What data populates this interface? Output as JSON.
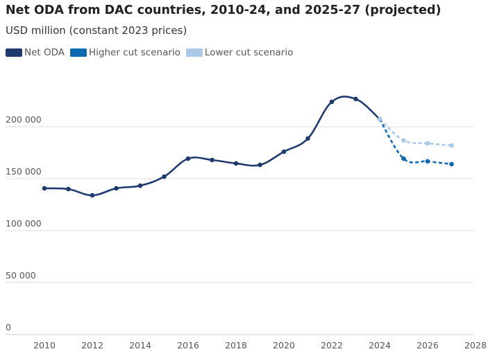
{
  "chart_data": {
    "type": "line",
    "title": "Net ODA from DAC countries, 2010-24, and 2025-27 (projected)",
    "subtitle": "USD million (constant 2023 prices)",
    "xlabel": "",
    "ylabel": "",
    "xlim": [
      2009,
      2028
    ],
    "ylim": [
      0,
      230000
    ],
    "grid": true,
    "legend_position": "top-left",
    "x_ticks": [
      "2010",
      "2012",
      "2014",
      "2016",
      "2018",
      "2020",
      "2022",
      "2024",
      "2026",
      "2028"
    ],
    "y_ticks": [
      "0",
      "50 000",
      "100 000",
      "150 000",
      "200 000"
    ],
    "series": [
      {
        "name": "Net ODA",
        "color": "#1f3a6e",
        "dashed": false,
        "x": [
          2010,
          2011,
          2012,
          2013,
          2014,
          2015,
          2016,
          2017,
          2018,
          2019,
          2020,
          2021,
          2022,
          2023,
          2024
        ],
        "values": [
          140700,
          140000,
          134000,
          140700,
          143300,
          152000,
          169300,
          168000,
          164700,
          163300,
          176000,
          188700,
          224000,
          226700,
          207300
        ]
      },
      {
        "name": "Higher cut scenario",
        "color": "#0f6ab4",
        "dashed": true,
        "x": [
          2024,
          2025,
          2026,
          2027
        ],
        "values": [
          207300,
          169300,
          166700,
          164000
        ]
      },
      {
        "name": "Lower cut scenario",
        "color": "#a9cbe8",
        "dashed": true,
        "x": [
          2024,
          2025,
          2026,
          2027
        ],
        "values": [
          207300,
          186900,
          184000,
          182000
        ]
      }
    ]
  }
}
